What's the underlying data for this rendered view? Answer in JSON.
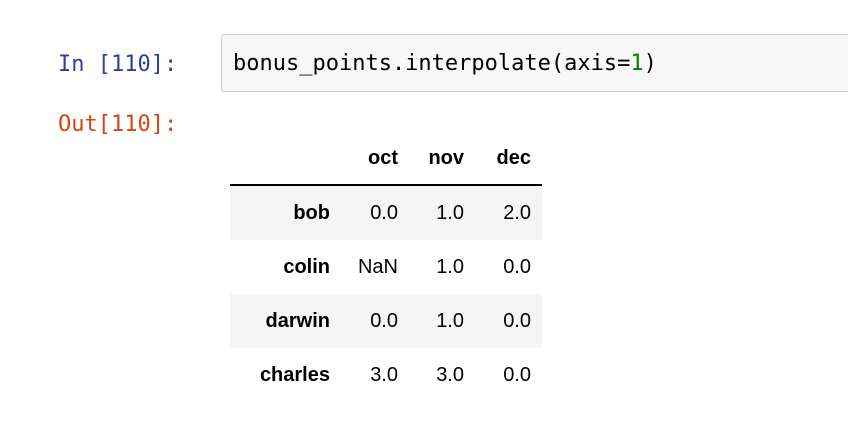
{
  "input_cell": {
    "prompt": "In [110]:",
    "code_prefix": "bonus_points.interpolate(axis=",
    "code_number": "1",
    "code_suffix": ")"
  },
  "output_cell": {
    "prompt": "Out[110]:"
  },
  "dataframe": {
    "columns": [
      "oct",
      "nov",
      "dec"
    ],
    "rows": [
      {
        "index": "bob",
        "values": [
          "0.0",
          "1.0",
          "2.0"
        ]
      },
      {
        "index": "colin",
        "values": [
          "NaN",
          "1.0",
          "0.0"
        ]
      },
      {
        "index": "darwin",
        "values": [
          "0.0",
          "1.0",
          "0.0"
        ]
      },
      {
        "index": "charles",
        "values": [
          "3.0",
          "3.0",
          "0.0"
        ]
      }
    ]
  },
  "colors": {
    "in_prompt": "#303f9f",
    "out_prompt": "#d84315",
    "code_number": "#008000",
    "cell_background": "#f7f7f7",
    "striped_row": "#f5f5f5"
  }
}
